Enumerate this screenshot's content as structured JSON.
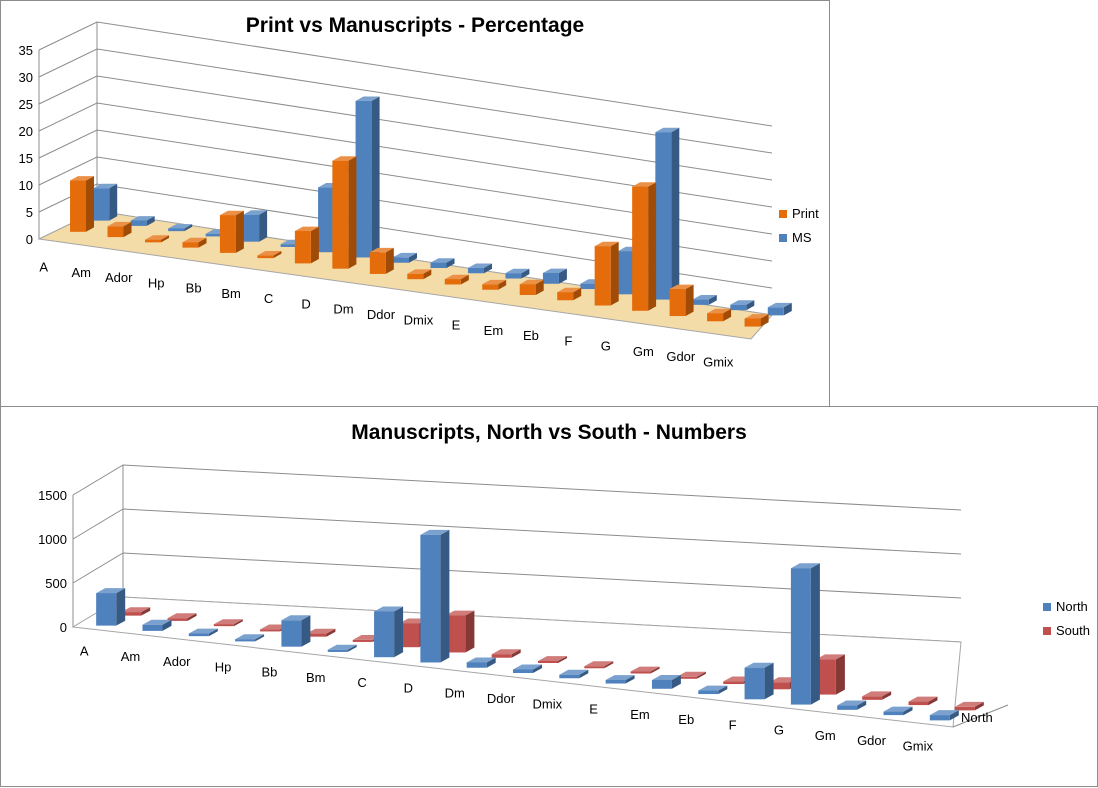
{
  "chart_data": [
    {
      "type": "bar",
      "title": "Print vs Manuscripts - Percentage",
      "categories": [
        "A",
        "Am",
        "Ador",
        "Hp",
        "Bb",
        "Bm",
        "C",
        "D",
        "Dm",
        "Ddor",
        "Dmix",
        "E",
        "Em",
        "Eb",
        "F",
        "G",
        "Gm",
        "Gdor",
        "Gmix"
      ],
      "series": [
        {
          "name": "Print",
          "color": "#e46c0a",
          "values": [
            9.5,
            2,
            0.5,
            1,
            7,
            0.5,
            6,
            20,
            4,
            1,
            1,
            1,
            2,
            1.5,
            11,
            23,
            5,
            1.5,
            1.5
          ]
        },
        {
          "name": "MS",
          "color": "#4f81bd",
          "values": [
            6,
            1,
            0.5,
            0.5,
            5,
            0.5,
            12,
            29,
            1,
            1,
            1,
            1,
            2,
            1,
            8,
            31,
            1,
            1,
            1.5
          ]
        }
      ],
      "yticks": [
        "0",
        "5",
        "10",
        "15",
        "20",
        "25",
        "30",
        "35"
      ],
      "ylim": [
        0,
        35
      ],
      "legend": "right"
    },
    {
      "type": "bar",
      "title": "Manuscripts, North vs South - Numbers",
      "categories": [
        "A",
        "Am",
        "Ador",
        "Hp",
        "Bb",
        "Bm",
        "C",
        "D",
        "Dm",
        "Ddor",
        "Dmix",
        "E",
        "Em",
        "Eb",
        "F",
        "G",
        "Gm",
        "Gdor",
        "Gmix"
      ],
      "series": [
        {
          "name": "North",
          "color": "#4f81bd",
          "values": [
            370,
            70,
            30,
            25,
            300,
            25,
            520,
            1450,
            60,
            40,
            40,
            40,
            100,
            40,
            360,
            1550,
            50,
            40,
            60
          ]
        },
        {
          "name": "South",
          "color": "#c0504d",
          "values": [
            40,
            30,
            20,
            20,
            35,
            20,
            270,
            420,
            40,
            20,
            20,
            20,
            20,
            30,
            80,
            400,
            40,
            40,
            40
          ]
        }
      ],
      "yticks": [
        "0",
        "500",
        "1000",
        "1500"
      ],
      "ylim": [
        0,
        1500
      ],
      "depth_label": "North",
      "legend": "right"
    }
  ]
}
